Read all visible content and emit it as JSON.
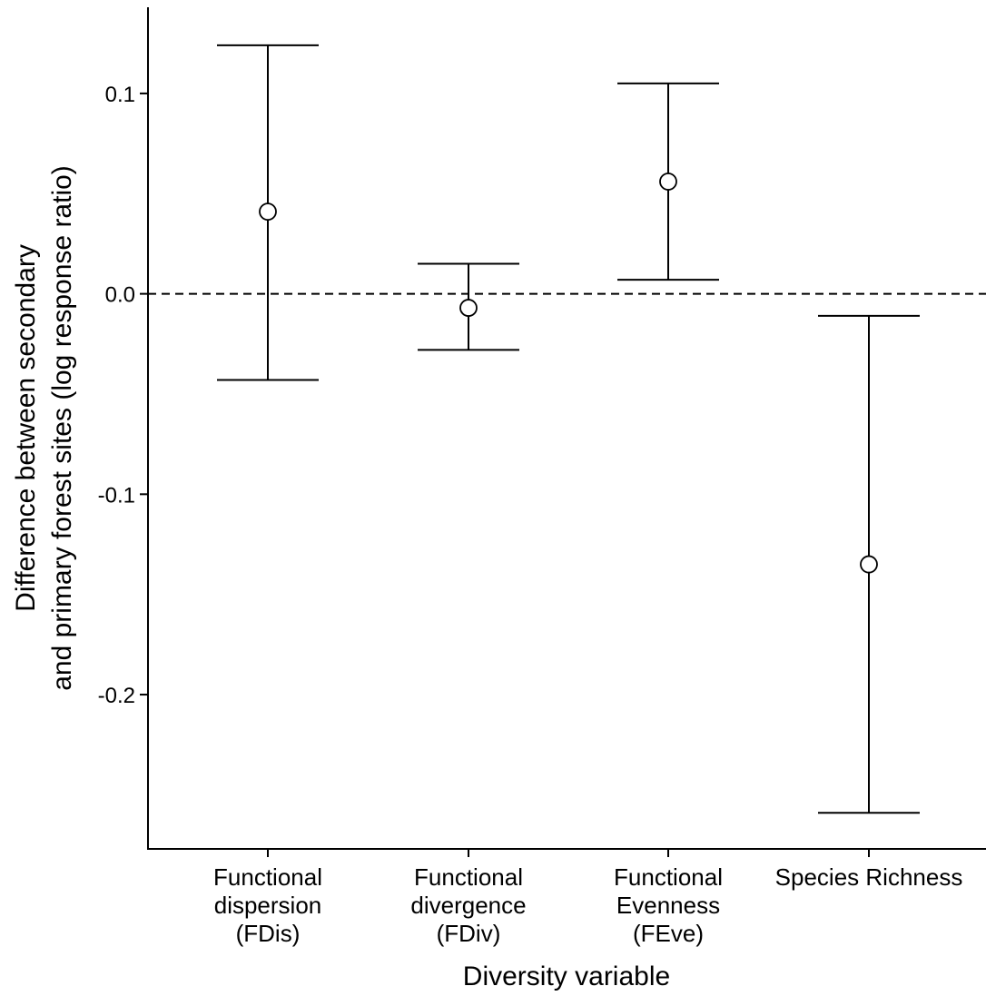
{
  "chart_data": {
    "type": "scatter",
    "subtype": "point-with-error-bars",
    "xlabel": "Diversity variable",
    "ylabel": [
      "Difference between secondary",
      "and primary forest sites (log response ratio)"
    ],
    "categories": [
      {
        "lines": [
          "Functional",
          "dispersion",
          "(FDis)"
        ]
      },
      {
        "lines": [
          "Functional",
          "divergence",
          "(FDiv)"
        ]
      },
      {
        "lines": [
          "Functional",
          "Evenness",
          "(FEve)"
        ]
      },
      {
        "lines": [
          "Species Richness"
        ]
      }
    ],
    "series": [
      {
        "estimates": [
          0.041,
          -0.007,
          0.056,
          -0.135
        ],
        "lower": [
          -0.043,
          -0.028,
          0.007,
          -0.259
        ],
        "upper": [
          0.124,
          0.015,
          0.105,
          -0.011
        ]
      }
    ],
    "yticks": [
      "-0.2",
      "-0.1",
      "0.0",
      "0.1"
    ],
    "ylim": [
      -0.277,
      0.143
    ],
    "reference_line": {
      "y": 0.0,
      "style": "dashed"
    },
    "grid": false,
    "legend": "none",
    "colors": {
      "ink": "#000000",
      "background": "#ffffff"
    }
  }
}
